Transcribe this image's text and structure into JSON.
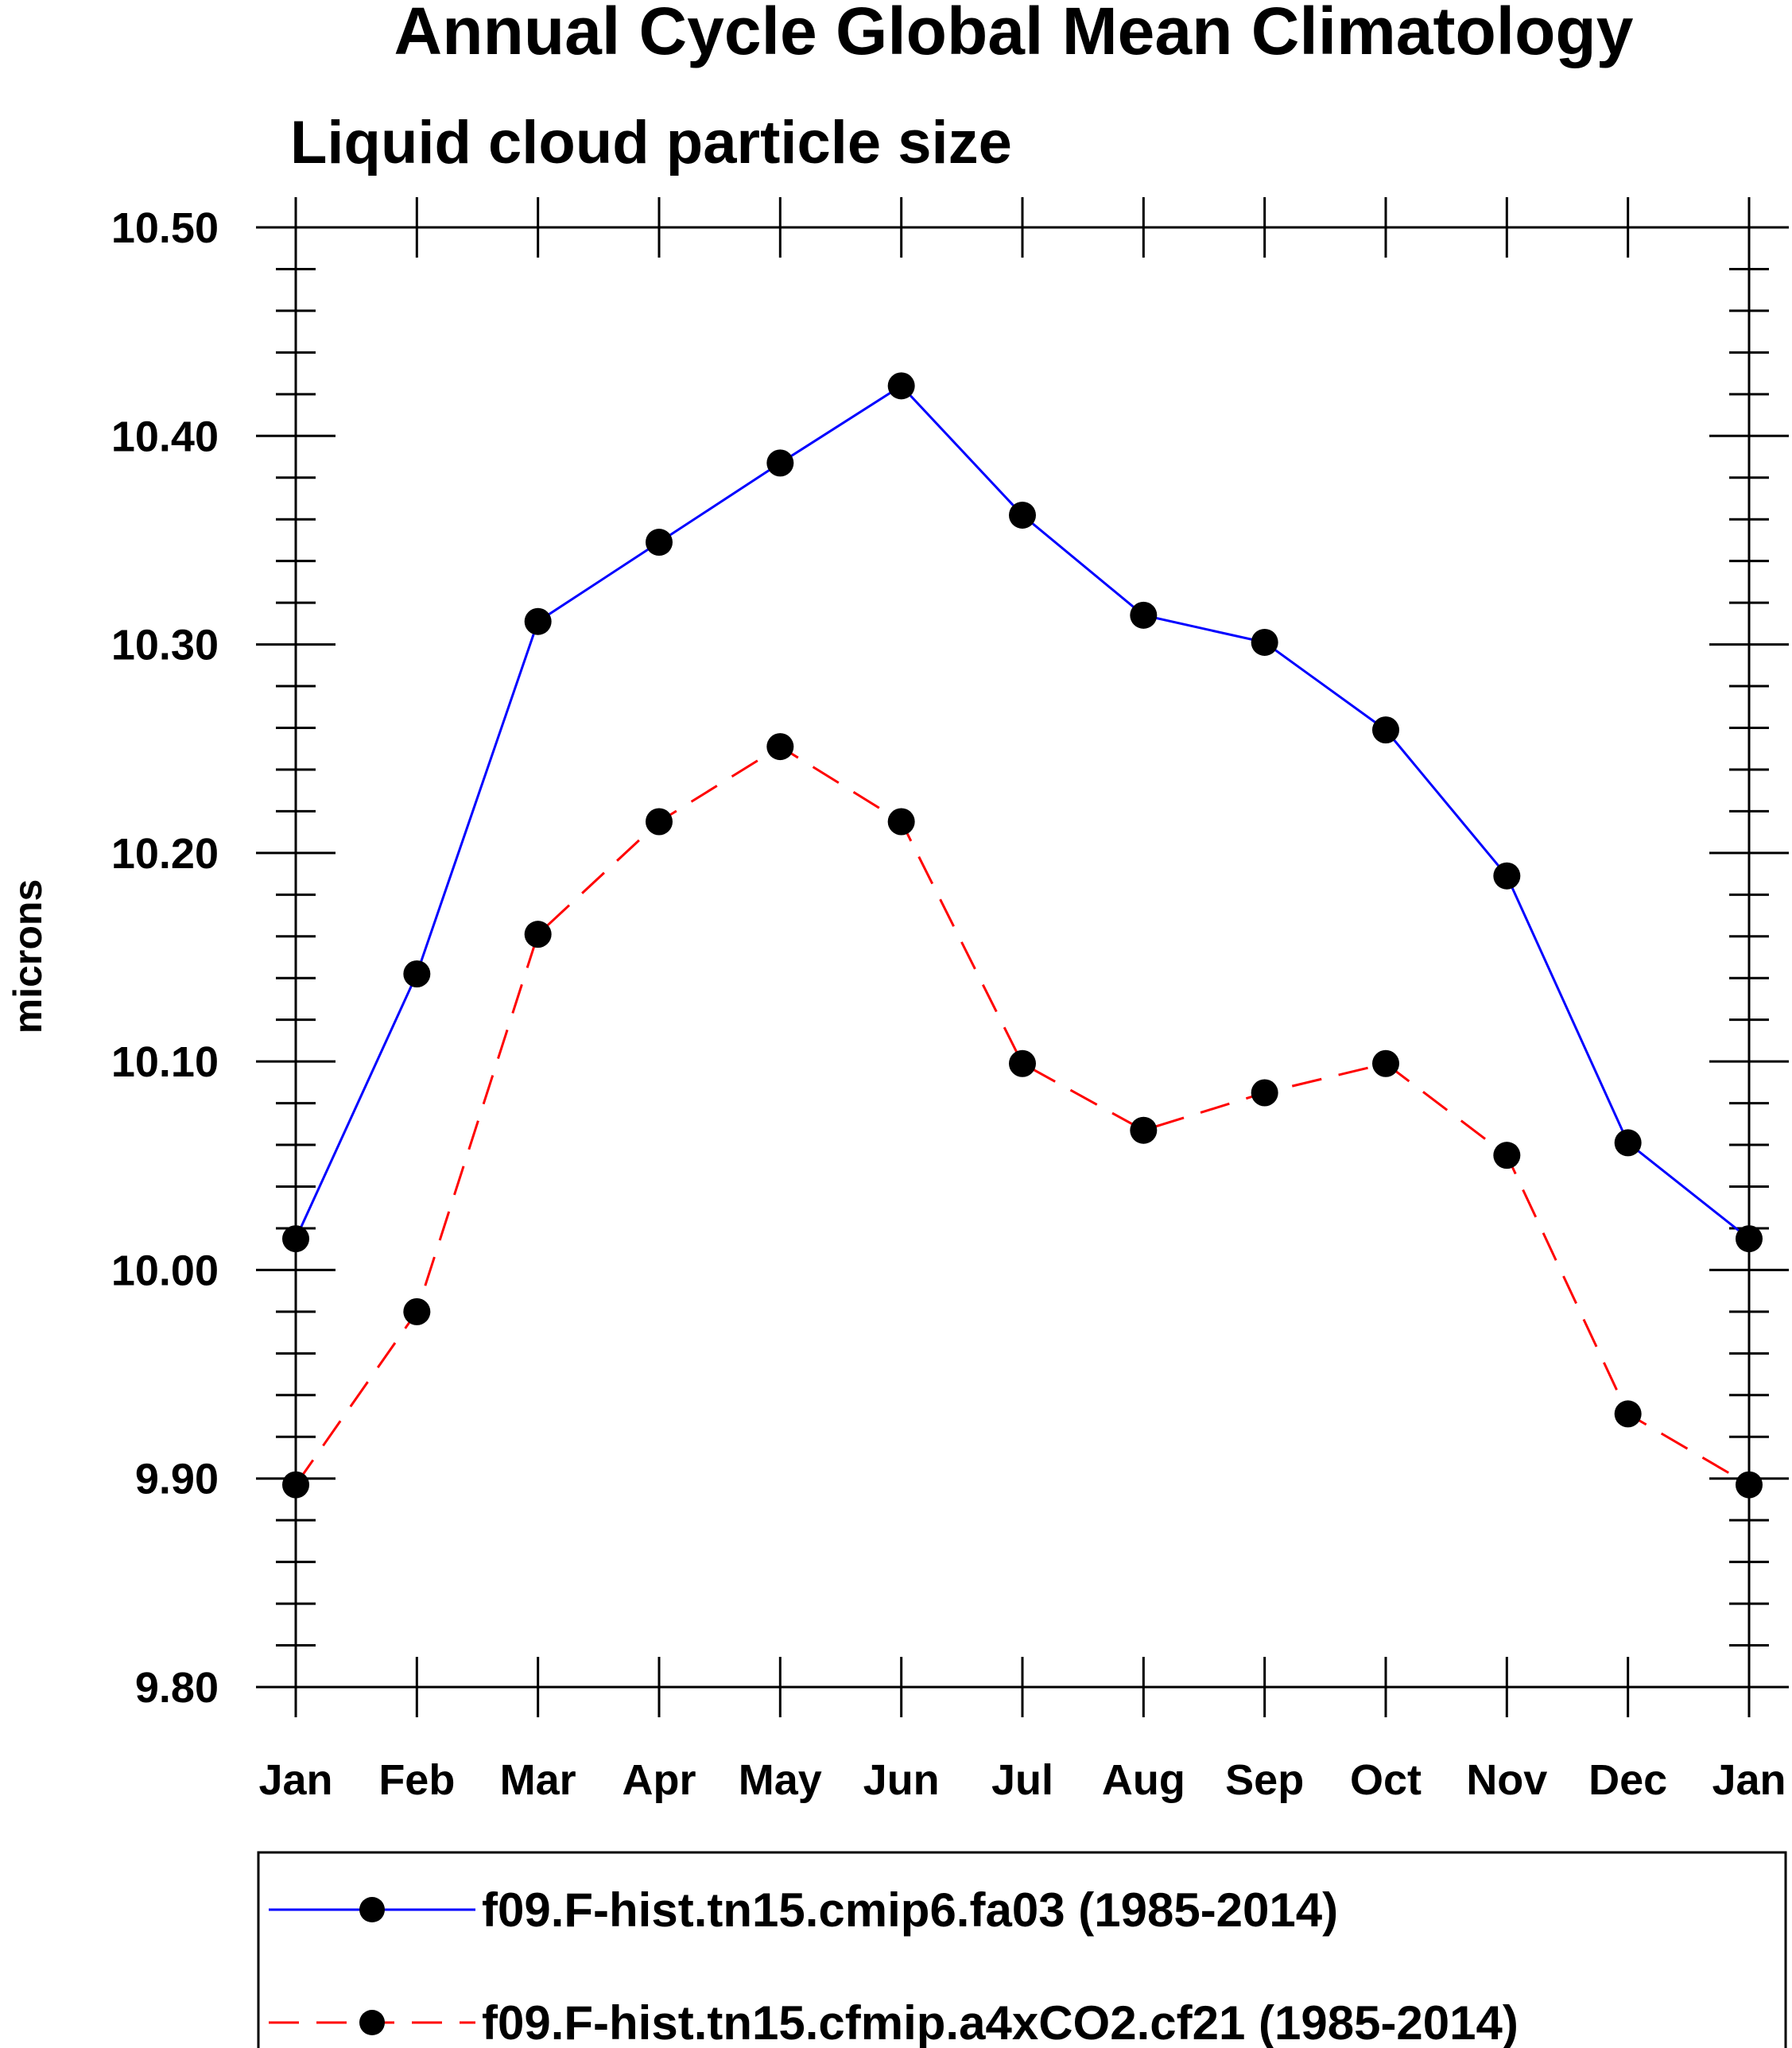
{
  "chart_data": {
    "type": "line",
    "title": "Annual Cycle Global Mean Climatology",
    "subtitle": "Liquid cloud particle size",
    "xlabel": "",
    "ylabel": "microns",
    "categories": [
      "Jan",
      "Feb",
      "Mar",
      "Apr",
      "May",
      "Jun",
      "Jul",
      "Aug",
      "Sep",
      "Oct",
      "Nov",
      "Dec",
      "Jan"
    ],
    "ylim": [
      9.8,
      10.5
    ],
    "yticks": [
      "9.80",
      "9.90",
      "10.00",
      "10.10",
      "10.20",
      "10.30",
      "10.40",
      "10.50"
    ],
    "grid": false,
    "legend_position": "bottom",
    "series": [
      {
        "name": "f09.F-hist.tn15.cmip6.fa03 (1985-2014)",
        "color": "#0000ff",
        "line_style": "solid",
        "marker": "filled-circle",
        "values": [
          10.015,
          10.142,
          10.311,
          10.349,
          10.387,
          10.424,
          10.362,
          10.314,
          10.301,
          10.259,
          10.189,
          10.061,
          10.015
        ]
      },
      {
        "name": "f09.F-hist.tn15.cfmip.a4xCO2.cf21 (1985-2014)",
        "color": "#ff0000",
        "line_style": "dashed",
        "marker": "filled-circle",
        "values": [
          9.897,
          9.98,
          10.161,
          10.215,
          10.251,
          10.215,
          10.099,
          10.067,
          10.085,
          10.099,
          10.055,
          9.931,
          9.897
        ]
      }
    ]
  }
}
